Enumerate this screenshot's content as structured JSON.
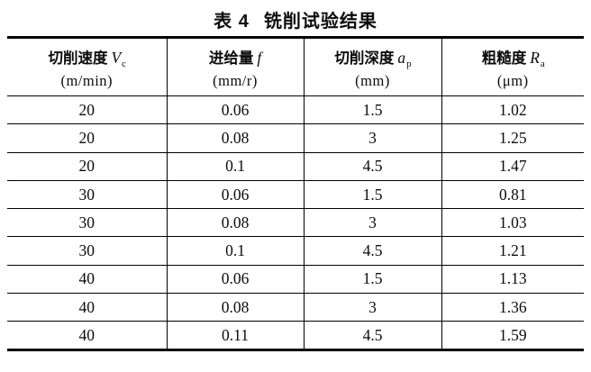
{
  "title": {
    "label": "表 4",
    "text": "铣削试验结果"
  },
  "table": {
    "columns": [
      {
        "name": "切削速度",
        "symbol": "V",
        "sub": "c",
        "unit": "(m/min)"
      },
      {
        "name": "进给量",
        "symbol": "f",
        "sub": "",
        "unit": "(mm/r)"
      },
      {
        "name": "切削深度",
        "symbol": "a",
        "sub": "p",
        "unit": "(mm)"
      },
      {
        "name": "粗糙度",
        "symbol": "R",
        "sub": "a",
        "unit": "(μm)"
      }
    ],
    "rows": [
      [
        "20",
        "0.06",
        "1.5",
        "1.02"
      ],
      [
        "20",
        "0.08",
        "3",
        "1.25"
      ],
      [
        "20",
        "0.1",
        "4.5",
        "1.47"
      ],
      [
        "30",
        "0.06",
        "1.5",
        "0.81"
      ],
      [
        "30",
        "0.08",
        "3",
        "1.03"
      ],
      [
        "30",
        "0.1",
        "4.5",
        "1.21"
      ],
      [
        "40",
        "0.06",
        "1.5",
        "1.13"
      ],
      [
        "40",
        "0.08",
        "3",
        "1.36"
      ],
      [
        "40",
        "0.11",
        "4.5",
        "1.59"
      ]
    ]
  },
  "colors": {
    "border": "#000000",
    "text": "#111111",
    "background": "#ffffff"
  }
}
